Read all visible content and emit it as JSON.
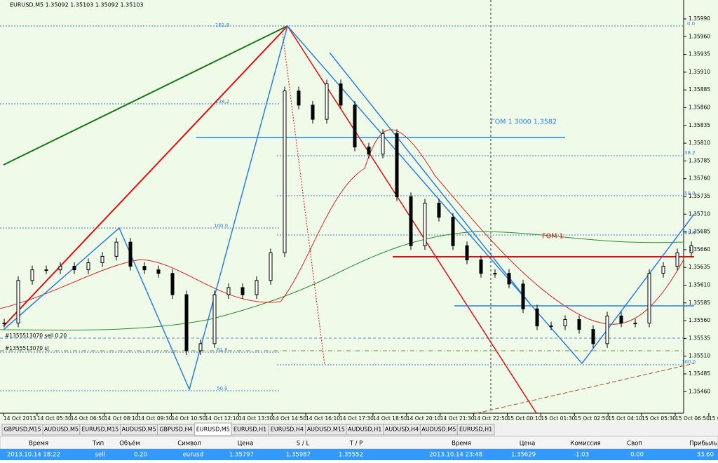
{
  "window": {
    "header": "EURUSD,M5  1.35092 1.35103 1.35092 1.35103",
    "price_axis": [
      "1.35990",
      "1.35960",
      "1.35935",
      "1.35910",
      "1.35885",
      "1.35860",
      "1.35835",
      "1.35810",
      "1.35785",
      "1.35760",
      "1.35735",
      "1.35710",
      "1.35685",
      "1.35660",
      "1.35635",
      "1.35610",
      "1.35585",
      "1.35560",
      "1.35535",
      "1.35510",
      "1.35485",
      "1.35460"
    ],
    "time_axis": [
      "14 Oct 2013",
      "14 Oct 05:30",
      "14 Oct 06:50",
      "14 Oct 08:10",
      "14 Oct 09:30",
      "14 Oct 10:50",
      "14 Oct 12:10",
      "14 Oct 13:30",
      "14 Oct 14:50",
      "14 Oct 16:10",
      "14 Oct 17:30",
      "14 Oct 18:50",
      "14 Oct 20:10",
      "14 Oct 21:30",
      "14 Oct 22:50",
      "15 Oct 00:10",
      "15 Oct 01:30",
      "15 Oct 02:50",
      "15 Oct 04:10",
      "15 Oct 05:30",
      "15 Oct 06:50",
      "15 Oct 08:1"
    ],
    "annotations": {
      "fib_left": [
        "161.8",
        "138.2",
        "100.0",
        "61.8",
        "50.0"
      ],
      "fib_right": [
        "0.0",
        "38.2",
        "50.0",
        "61.8",
        "100.0"
      ],
      "gom_1_level": "ГОМ 1  3000  1,3582",
      "gom_1": "ГОМ 1",
      "order": "#1355513070 sell 0.20",
      "order_sl": "#1355513070 sl"
    },
    "closes": [
      1.35556,
      1.35616,
      1.35631,
      1.35631,
      1.35636,
      1.35631,
      1.35641,
      1.3565,
      1.3567,
      1.35636,
      1.35631,
      1.35626,
      1.35596,
      1.35517,
      1.35527,
      1.35596,
      1.35606,
      1.35596,
      1.35616,
      1.35655,
      1.35883,
      1.35863,
      1.35843,
      1.35893,
      1.35863,
      1.35804,
      1.35794,
      1.35823,
      1.35734,
      1.35665,
      1.35725,
      1.35705,
      1.35665,
      1.35645,
      1.35626,
      1.35626,
      1.35611,
      1.35576,
      1.35552,
      1.35552,
      1.35561,
      1.35547,
      1.35527,
      1.35566,
      1.35556,
      1.35556,
      1.35626,
      1.35636,
      1.35655,
      1.35665
    ]
  },
  "tabs": [
    "GBPUSD,M15",
    "AUDUSD,M5",
    "EURUSD,M15",
    "AUDUSD,M5",
    "GBPUSD,H4",
    "EURUSD,M5",
    "EURUSD,H1",
    "EURUSD,H4",
    "AUDUSD,M15",
    "AUDUSD,H1",
    "AUDUSD,H4",
    "AUDUSD,M5",
    "EURUSD,H1"
  ],
  "table": {
    "columns": [
      "Время",
      "Тип",
      "Объём",
      "Символ",
      "Цена",
      "S / L",
      "T / P",
      "Время",
      "Цена",
      "Комиссия",
      "Своп",
      "Прибыль"
    ],
    "rows": [
      [
        "2013.10.14 18:22",
        "sell",
        "0.20",
        "eurusd",
        "1.35797",
        "1.35987",
        "1.35552",
        "2013.10.14 23:48",
        "1.35629",
        "-1.03",
        "0.00",
        "33.60"
      ]
    ]
  }
}
